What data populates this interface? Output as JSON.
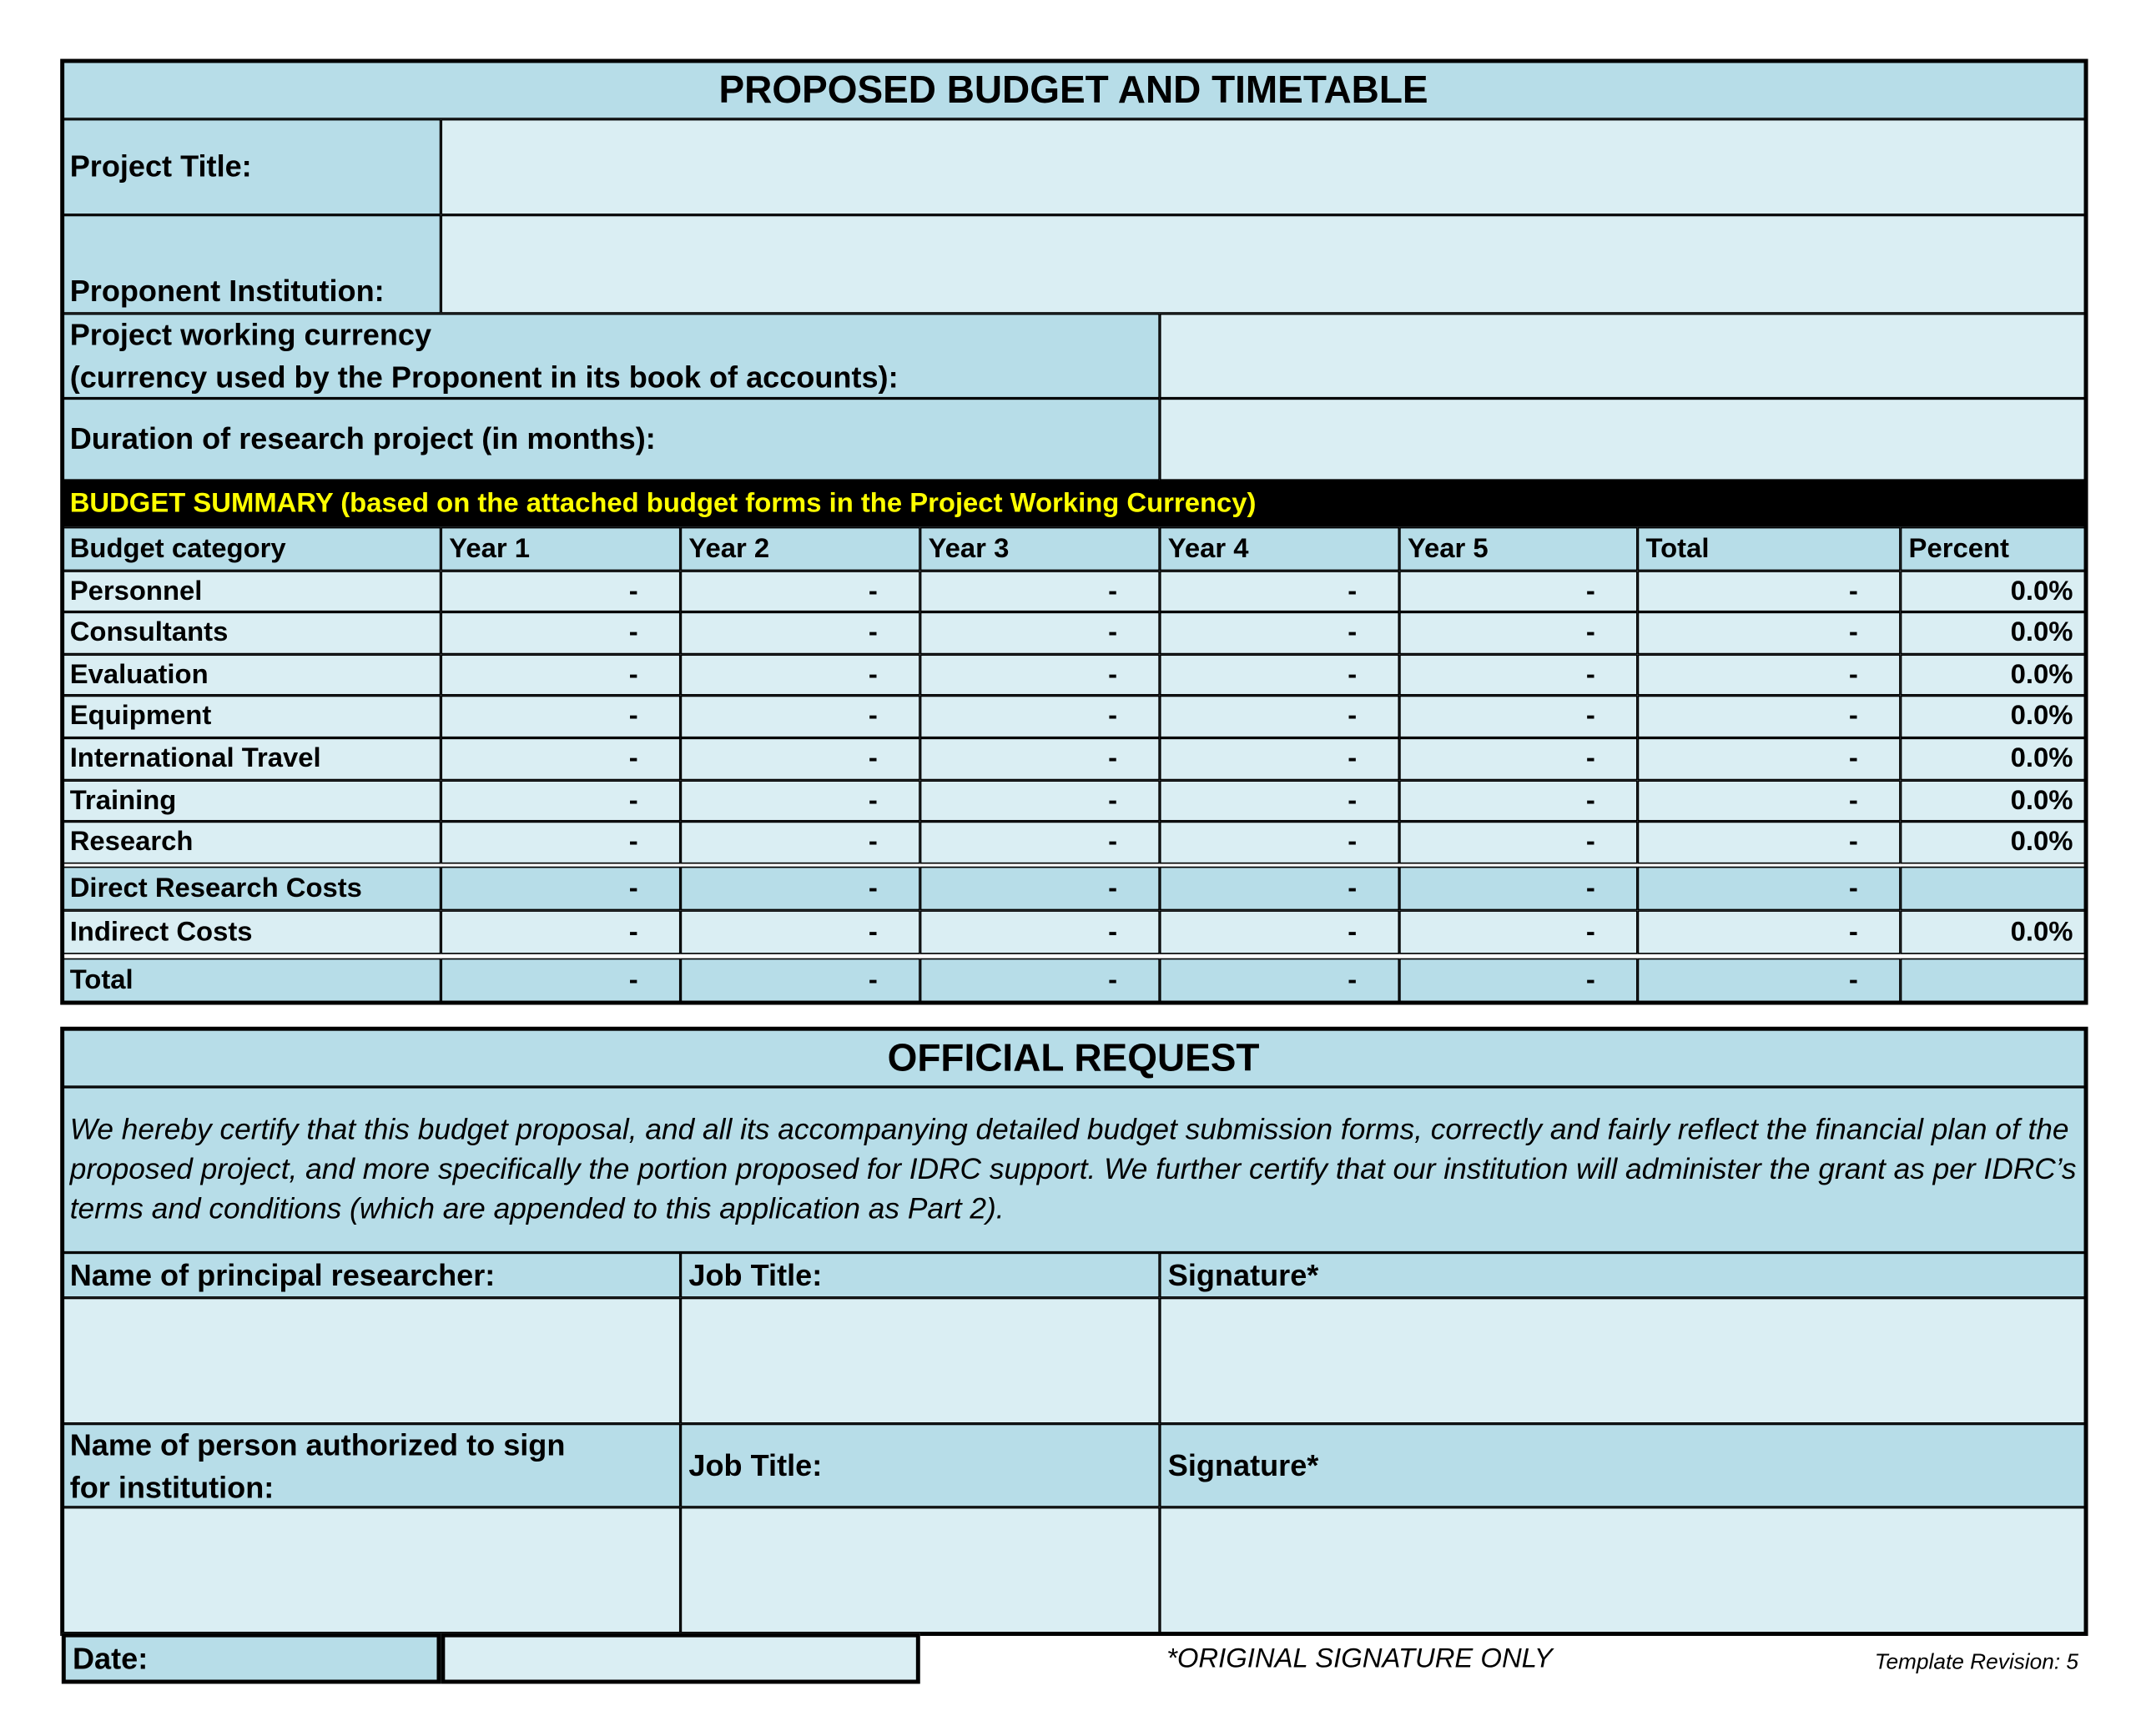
{
  "budget_form": {
    "title": "PROPOSED BUDGET AND TIMETABLE",
    "project_title_label": "Project Title:",
    "project_title_value": "",
    "institution_label": "Proponent Institution:",
    "institution_value": "",
    "currency_label_line1": "Project working currency",
    "currency_label_line2": "(currency used by the Proponent in its book of accounts):",
    "currency_value": "",
    "duration_label": "Duration of research project (in months):",
    "duration_value": "",
    "summary_banner": "BUDGET SUMMARY (based on the attached budget forms in the Project Working Currency)",
    "banner_text_color": "#ffff00",
    "header_color": "#b7dde8",
    "cell_color": "#daeef3",
    "columns": [
      "Budget category",
      "Year 1",
      "Year 2",
      "Year 3",
      "Year 4",
      "Year 5",
      "Total",
      "Percent"
    ],
    "rows": [
      {
        "category": "Personnel",
        "values": [
          "-",
          "-",
          "-",
          "-",
          "-",
          "-"
        ],
        "percent": "0.0%"
      },
      {
        "category": "Consultants",
        "values": [
          "-",
          "-",
          "-",
          "-",
          "-",
          "-"
        ],
        "percent": "0.0%"
      },
      {
        "category": "Evaluation",
        "values": [
          "-",
          "-",
          "-",
          "-",
          "-",
          "-"
        ],
        "percent": "0.0%"
      },
      {
        "category": "Equipment",
        "values": [
          "-",
          "-",
          "-",
          "-",
          "-",
          "-"
        ],
        "percent": "0.0%"
      },
      {
        "category": "International Travel",
        "values": [
          "-",
          "-",
          "-",
          "-",
          "-",
          "-"
        ],
        "percent": "0.0%"
      },
      {
        "category": "Training",
        "values": [
          "-",
          "-",
          "-",
          "-",
          "-",
          "-"
        ],
        "percent": "0.0%"
      },
      {
        "category": "Research",
        "values": [
          "-",
          "-",
          "-",
          "-",
          "-",
          "-"
        ],
        "percent": "0.0%"
      },
      {
        "category": "Direct Research Costs",
        "values": [
          "-",
          "-",
          "-",
          "-",
          "-",
          "-"
        ],
        "percent": ""
      },
      {
        "category": "Indirect Costs",
        "values": [
          "-",
          "-",
          "-",
          "-",
          "-",
          "-"
        ],
        "percent": "0.0%"
      },
      {
        "category": "Total",
        "values": [
          "-",
          "-",
          "-",
          "-",
          "-",
          "-"
        ],
        "percent": ""
      }
    ]
  },
  "official_request": {
    "title": "OFFICIAL REQUEST",
    "certification": "We hereby certify that this budget proposal, and all its accompanying detailed budget submission forms, correctly and fairly reflect the financial plan of the proposed project, and more specifically the portion proposed for IDRC support. We further certify that our institution will administer the grant as per IDRC’s terms and conditions (which are appended to this application as Part 2).",
    "researcher_label": "Name of principal researcher:",
    "job_title_label": "Job Title:",
    "signature_label": "Signature*",
    "authorized_label_line1": "Name of person authorized to sign",
    "authorized_label_line2": "for institution:",
    "date_label": "Date:",
    "date_value": "",
    "footnote": "*ORIGINAL SIGNATURE ONLY",
    "template_revision": "Template Revision: 5"
  }
}
